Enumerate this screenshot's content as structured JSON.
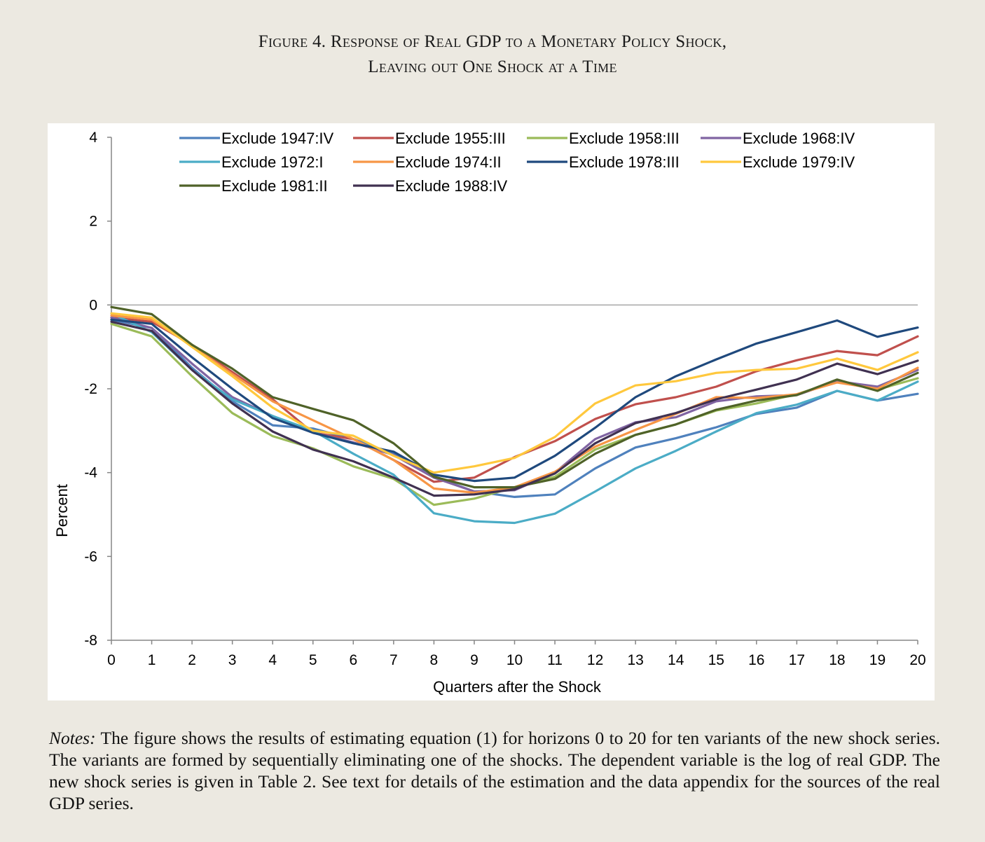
{
  "figure": {
    "title_line1": "Figure 4. Response of Real GDP to a Monetary Policy Shock,",
    "title_line2": "Leaving out One Shock at a Time"
  },
  "notes": {
    "label": "Notes:",
    "text": " The figure shows the results of estimating equation (1) for horizons 0 to 20 for ten variants of the new shock series. The variants are formed by sequentially eliminating one of the shocks. The dependent variable is the log of real GDP. The new shock series is given in Table 2. See text for details of the estimation and the data appendix for the sources of the real GDP series."
  },
  "chart_data": {
    "type": "line",
    "xlabel": "Quarters after the Shock",
    "ylabel": "Percent",
    "xlim": [
      0,
      20
    ],
    "ylim": [
      -8,
      4
    ],
    "yticks": [
      4,
      2,
      0,
      -2,
      -4,
      -6,
      -8
    ],
    "yticks_labels": [
      "4",
      "2",
      "0",
      "-2",
      "-4",
      "-6",
      "-8"
    ],
    "x": [
      0,
      1,
      2,
      3,
      4,
      5,
      6,
      7,
      8,
      9,
      10,
      11,
      12,
      13,
      14,
      15,
      16,
      17,
      18,
      19,
      20
    ],
    "x_labels": [
      "0",
      "1",
      "2",
      "3",
      "4",
      "5",
      "6",
      "7",
      "8",
      "9",
      "10",
      "11",
      "12",
      "13",
      "14",
      "15",
      "16",
      "17",
      "18",
      "19",
      "20"
    ],
    "zero_line": true,
    "legend_position": "top",
    "series": [
      {
        "name": "Exclude 1947:IV",
        "color": "#4F81BD",
        "values": [
          -0.35,
          -0.55,
          -1.5,
          -2.3,
          -2.87,
          -2.95,
          -3.2,
          -3.55,
          -4.1,
          -4.45,
          -4.58,
          -4.52,
          -3.9,
          -3.4,
          -3.18,
          -2.92,
          -2.6,
          -2.45,
          -2.05,
          -2.28,
          -2.12
        ]
      },
      {
        "name": "Exclude 1955:III",
        "color": "#C0504D",
        "values": [
          -0.3,
          -0.4,
          -0.95,
          -1.6,
          -2.25,
          -3.05,
          -3.2,
          -3.7,
          -4.22,
          -4.12,
          -3.63,
          -3.25,
          -2.72,
          -2.37,
          -2.2,
          -1.95,
          -1.58,
          -1.32,
          -1.1,
          -1.2,
          -0.75
        ]
      },
      {
        "name": "Exclude 1958:III",
        "color": "#9BBB59",
        "values": [
          -0.45,
          -0.75,
          -1.7,
          -2.58,
          -3.13,
          -3.42,
          -3.85,
          -4.15,
          -4.77,
          -4.62,
          -4.35,
          -4.1,
          -3.45,
          -3.1,
          -2.85,
          -2.52,
          -2.35,
          -2.13,
          -1.82,
          -2.02,
          -1.75
        ]
      },
      {
        "name": "Exclude 1968:IV",
        "color": "#8064A2",
        "values": [
          -0.3,
          -0.55,
          -1.4,
          -2.2,
          -2.65,
          -3.05,
          -3.28,
          -3.58,
          -4.12,
          -4.45,
          -4.42,
          -4.0,
          -3.2,
          -2.8,
          -2.68,
          -2.3,
          -2.18,
          -2.15,
          -1.82,
          -1.95,
          -1.55
        ]
      },
      {
        "name": "Exclude 1972:I",
        "color": "#4BACC6",
        "values": [
          -0.2,
          -0.65,
          -1.55,
          -2.25,
          -2.65,
          -3.0,
          -3.55,
          -4.05,
          -4.97,
          -5.16,
          -5.2,
          -4.98,
          -4.45,
          -3.9,
          -3.48,
          -3.02,
          -2.58,
          -2.38,
          -2.05,
          -2.28,
          -1.83
        ]
      },
      {
        "name": "Exclude 1974:II",
        "color": "#F79646",
        "values": [
          -0.25,
          -0.35,
          -0.98,
          -1.65,
          -2.3,
          -2.75,
          -3.2,
          -3.7,
          -4.38,
          -4.48,
          -4.35,
          -3.98,
          -3.38,
          -2.98,
          -2.6,
          -2.2,
          -2.22,
          -2.13,
          -1.85,
          -2.0,
          -1.5
        ]
      },
      {
        "name": "Exclude 1978:III",
        "color": "#1F497D",
        "values": [
          -0.35,
          -0.45,
          -1.25,
          -2.0,
          -2.7,
          -3.05,
          -3.3,
          -3.5,
          -4.05,
          -4.2,
          -4.12,
          -3.6,
          -2.93,
          -2.2,
          -1.7,
          -1.3,
          -0.92,
          -0.65,
          -0.37,
          -0.76,
          -0.54
        ]
      },
      {
        "name": "Exclude 1979:IV",
        "color": "#FFC83D",
        "values": [
          -0.2,
          -0.3,
          -1.0,
          -1.7,
          -2.45,
          -3.0,
          -3.12,
          -3.6,
          -4.0,
          -3.85,
          -3.65,
          -3.15,
          -2.35,
          -1.92,
          -1.82,
          -1.62,
          -1.55,
          -1.52,
          -1.28,
          -1.55,
          -1.13
        ]
      },
      {
        "name": "Exclude 1981:II",
        "color": "#4F6228",
        "values": [
          -0.05,
          -0.22,
          -0.95,
          -1.52,
          -2.2,
          -2.48,
          -2.75,
          -3.3,
          -4.1,
          -4.35,
          -4.35,
          -4.15,
          -3.55,
          -3.1,
          -2.85,
          -2.5,
          -2.28,
          -2.15,
          -1.78,
          -2.05,
          -1.62
        ]
      },
      {
        "name": "Exclude 1988:IV",
        "color": "#403151",
        "values": [
          -0.4,
          -0.62,
          -1.55,
          -2.35,
          -3.02,
          -3.45,
          -3.73,
          -4.12,
          -4.55,
          -4.52,
          -4.4,
          -4.02,
          -3.3,
          -2.82,
          -2.58,
          -2.25,
          -2.02,
          -1.78,
          -1.4,
          -1.65,
          -1.33
        ]
      }
    ]
  }
}
